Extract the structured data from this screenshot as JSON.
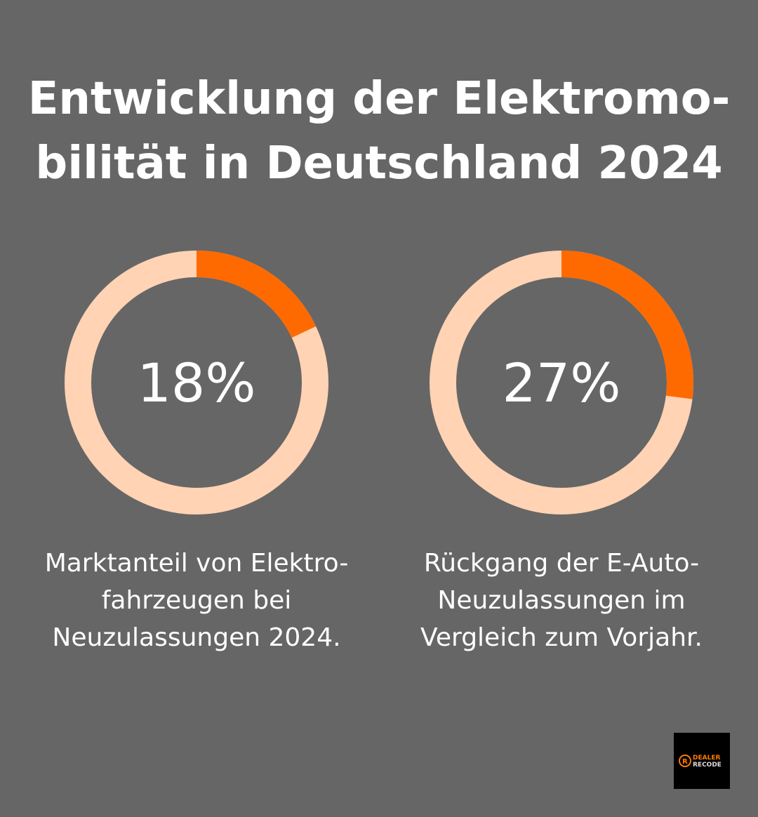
{
  "title": {
    "line1": "Entwicklung der Elektromo-",
    "line2": "bilität in Deutschland 2024"
  },
  "colors": {
    "background": "#666666",
    "accent": "#FF6A00",
    "track": "#FFD3B4"
  },
  "chart_data": [
    {
      "type": "pie",
      "variant": "donut",
      "value_label": "18%",
      "values": [
        18,
        82
      ],
      "caption": [
        "Marktanteil von Elektro-",
        "fahrzeugen bei",
        "Neuzulassungen 2024."
      ]
    },
    {
      "type": "pie",
      "variant": "donut",
      "value_label": "27%",
      "values": [
        27,
        73
      ],
      "caption": [
        "Rückgang der E-Auto-",
        "Neuzulassungen im",
        "Vergleich zum Vorjahr."
      ]
    }
  ],
  "logo": {
    "line1": "DEALER",
    "line2": "RECODE"
  }
}
